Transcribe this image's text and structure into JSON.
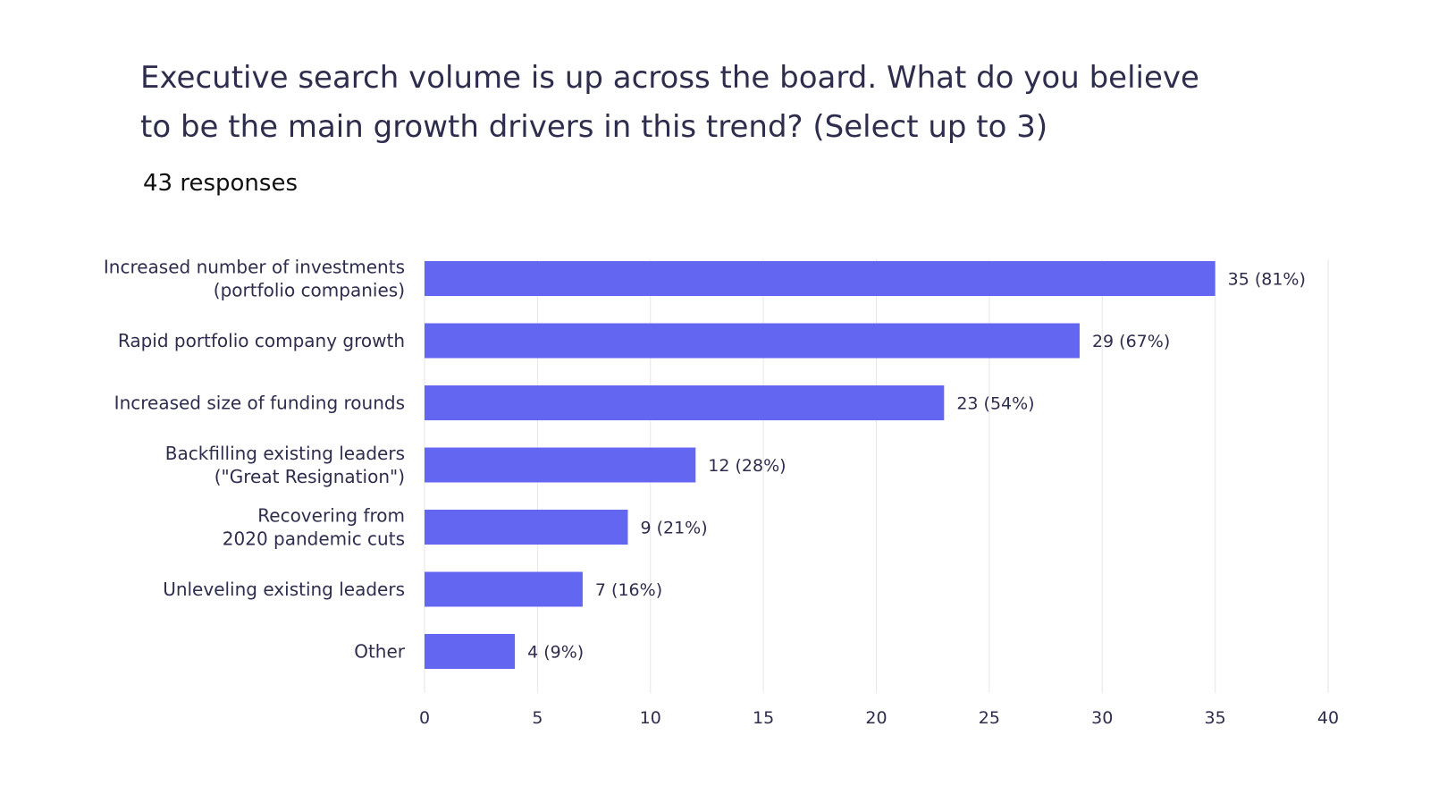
{
  "title_lines": [
    "Executive search volume is up across the board.  What do you believe",
    "to be the main growth drivers in this trend?  (Select up to 3)"
  ],
  "subtitle": "43 responses",
  "colors": {
    "bar": "#6366f1",
    "grid": "#e6e6e6",
    "text": "#2e2d4d"
  },
  "chart_data": {
    "type": "bar",
    "orientation": "horizontal",
    "categories": [
      [
        "Increased number of investments",
        "(portfolio companies)"
      ],
      [
        "Rapid portfolio company growth"
      ],
      [
        "Increased size of funding rounds"
      ],
      [
        "Backfilling existing leaders",
        "(\"Great Resignation\")"
      ],
      [
        "Recovering from",
        "2020 pandemic cuts"
      ],
      [
        "Unleveling existing leaders"
      ],
      [
        "Other"
      ]
    ],
    "values": [
      35,
      29,
      23,
      12,
      9,
      7,
      4
    ],
    "data_labels": [
      "35 (81%)",
      "29 (67%)",
      "23 (54%)",
      "12 (28%)",
      "9 (21%)",
      "7 (16%)",
      "4 (9%)"
    ],
    "xlim": [
      0,
      40
    ],
    "xticks": [
      "0",
      "5",
      "10",
      "15",
      "20",
      "25",
      "30",
      "35",
      "40"
    ],
    "grid": true,
    "legend": "none"
  }
}
